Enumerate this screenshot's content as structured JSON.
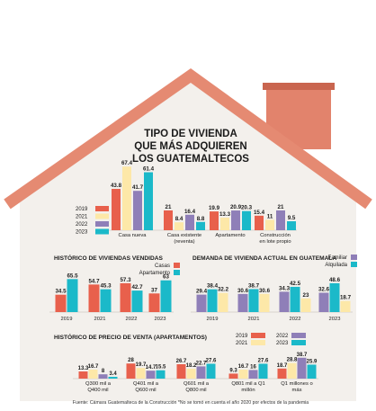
{
  "title_lines": [
    "TIPO DE VIVIENDA",
    "QUE MÁS ADQUIEREN",
    "LOS GUATEMALTECOS"
  ],
  "colors": {
    "c2019": "#e8604c",
    "c2021": "#fde8a8",
    "c2022": "#8f7fb8",
    "c2023": "#1bb9c9",
    "casas": "#e8604c",
    "apartamento": "#1bb9c9",
    "familiar": "#8f7fb8",
    "alquilada": "#1bb9c9",
    "roof": "#e58a72",
    "wall": "#f3f0ec",
    "chimney": "#e2836c"
  },
  "source": "Fuente: Cámara Guatemalteca de la Construcción *No se tomó en cuenta el año 2020 por efectos de la pandemia",
  "chart_data": [
    {
      "id": "tipo",
      "type": "bar",
      "title": "TIPO DE VIVIENDA QUE MÁS ADQUIEREN LOS GUATEMALTECOS",
      "categories": [
        "Casa nueva",
        "Casa existente (reventa)",
        "Apartamento",
        "Construcción en lote propio"
      ],
      "category_lines": [
        [
          "Casa nueva"
        ],
        [
          "Casa existente",
          "(reventa)"
        ],
        [
          "Apartamento"
        ],
        [
          "Construcción",
          "en lote propio"
        ]
      ],
      "series": [
        {
          "name": "2019",
          "color_key": "c2019",
          "values": [
            43.8,
            21,
            19.9,
            15.4
          ]
        },
        {
          "name": "2021",
          "color_key": "c2021",
          "values": [
            67.4,
            8.4,
            13.3,
            11
          ]
        },
        {
          "name": "2022",
          "color_key": "c2022",
          "values": [
            41.7,
            16.4,
            20.9,
            21
          ]
        },
        {
          "name": "2023",
          "color_key": "c2023",
          "values": [
            61.4,
            8.8,
            20.3,
            9.5
          ]
        }
      ],
      "legend": [
        "2019",
        "2021",
        "2022",
        "2023"
      ],
      "legend_position": "left"
    },
    {
      "id": "vendidas",
      "type": "bar",
      "title": "HISTÓRICO DE VIVIENDAS VENDIDAS",
      "categories": [
        "2019",
        "2021",
        "2022",
        "2023"
      ],
      "series": [
        {
          "name": "Casas",
          "color_key": "casas",
          "values": [
            34.5,
            54.7,
            57.3,
            37
          ]
        },
        {
          "name": "Apartamento",
          "color_key": "apartamento",
          "values": [
            65.5,
            45.3,
            42.7,
            63
          ]
        }
      ],
      "legend": [
        "Casas",
        "Apartamento"
      ],
      "legend_position": "top-right"
    },
    {
      "id": "demanda",
      "type": "bar",
      "title": "DEMANDA DE VIVIENDA ACTUAL EN GUATEMALA",
      "categories": [
        "2019",
        "2021",
        "2022",
        "2023"
      ],
      "series": [
        {
          "name": "Familiar",
          "color_key": "familiar",
          "values": [
            29.4,
            30.6,
            34.3,
            32.6
          ]
        },
        {
          "name": "Alquilada",
          "color_key": "alquilada",
          "values": [
            38.4,
            38.7,
            42.5,
            48.6
          ]
        },
        {
          "name": "",
          "color_key": "c2021",
          "values": [
            32.2,
            30.6,
            23,
            18.7
          ]
        }
      ],
      "legend": [
        "Familiar",
        "Alquilada"
      ],
      "legend_position": "top-right"
    },
    {
      "id": "precio",
      "type": "bar",
      "title": "HISTÓRICO DE PRECIO DE VENTA (APARTAMENTOS)",
      "categories": [
        "Q300 mil a Q400 mil",
        "Q401 mil a Q600 mil",
        "Q601 mil a Q800 mil",
        "Q801 mil a Q1 millón",
        "Q1 millones o más"
      ],
      "category_lines": [
        [
          "Q300 mil a",
          "Q400 mil"
        ],
        [
          "Q401 mil a",
          "Q600 mil"
        ],
        [
          "Q601 mil a",
          "Q800 mil"
        ],
        [
          "Q801 mil a Q1",
          "millón"
        ],
        [
          "Q1 millones o",
          "más"
        ]
      ],
      "series": [
        {
          "name": "2019",
          "color_key": "c2019",
          "values": [
            13.3,
            28,
            26.7,
            9.3,
            18.7
          ]
        },
        {
          "name": "2021",
          "color_key": "c2021",
          "values": [
            16.7,
            19.7,
            18.2,
            16.7,
            28.8
          ]
        },
        {
          "name": "2022",
          "color_key": "c2022",
          "values": [
            8,
            14.7,
            22.7,
            16,
            38.7
          ]
        },
        {
          "name": "2023",
          "color_key": "c2023",
          "values": [
            3.4,
            15.5,
            27.6,
            27.6,
            25.9
          ]
        }
      ],
      "legend": [
        "2019",
        "2021",
        "2022",
        "2023"
      ],
      "legend_position": "top-right"
    }
  ]
}
